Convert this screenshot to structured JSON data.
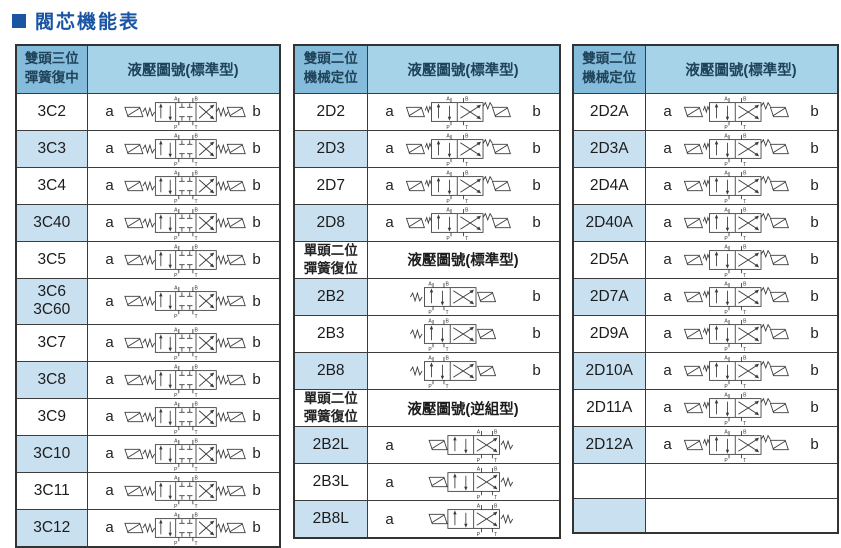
{
  "page": {
    "title": "閥芯機能表"
  },
  "colors": {
    "title": "#1a55a3",
    "header_col1_bg": "#85bcdb",
    "header_col2_bg": "#a7d3e8",
    "row_alt_bg": "#c9e0f1",
    "row_bg": "#ffffff",
    "border": "#3c3c3c"
  },
  "tables": [
    {
      "name": "three-position-spring-centered",
      "header": {
        "col1": "雙頭三位\n彈簧復中",
        "col2": "液壓圖號(標準型)"
      },
      "rows": [
        {
          "label": "3C2",
          "a": "a",
          "b": "b",
          "diagram": "valve-3pos"
        },
        {
          "label": "3C3",
          "a": "a",
          "b": "b",
          "diagram": "valve-3pos"
        },
        {
          "label": "3C4",
          "a": "a",
          "b": "b",
          "diagram": "valve-3pos"
        },
        {
          "label": "3C40",
          "a": "a",
          "b": "b",
          "diagram": "valve-3pos"
        },
        {
          "label": "3C5",
          "a": "a",
          "b": "b",
          "diagram": "valve-3pos"
        },
        {
          "label": "3C6\n3C60",
          "tall": true,
          "a": "a",
          "b": "b",
          "diagram": "valve-3pos"
        },
        {
          "label": "3C7",
          "a": "a",
          "b": "b",
          "diagram": "valve-3pos"
        },
        {
          "label": "3C8",
          "a": "a",
          "b": "b",
          "diagram": "valve-3pos"
        },
        {
          "label": "3C9",
          "a": "a",
          "b": "b",
          "diagram": "valve-3pos"
        },
        {
          "label": "3C10",
          "a": "a",
          "b": "b",
          "diagram": "valve-3pos"
        },
        {
          "label": "3C11",
          "a": "a",
          "b": "b",
          "diagram": "valve-3pos"
        },
        {
          "label": "3C12",
          "a": "a",
          "b": "b",
          "diagram": "valve-3pos"
        }
      ]
    },
    {
      "name": "two-position-mechanical-detent",
      "header": {
        "col1": "雙頭二位\n機械定位",
        "col2": "液壓圖號(標準型)"
      },
      "rows": [
        {
          "label": "2D2",
          "a": "a",
          "b": "b",
          "diagram": "valve-2pos-detent"
        },
        {
          "label": "2D3",
          "a": "a",
          "b": "b",
          "diagram": "valve-2pos-detent"
        },
        {
          "label": "2D7",
          "a": "a",
          "b": "b",
          "diagram": "valve-2pos-detent"
        },
        {
          "label": "2D8",
          "a": "a",
          "b": "b",
          "diagram": "valve-2pos-detent"
        },
        {
          "kind": "subheader",
          "label": "單頭二位\n彈簧復位",
          "title": "液壓圖號(標準型)"
        },
        {
          "label": "2B2",
          "b": "b",
          "diagram": "valve-2pos-spring-return"
        },
        {
          "label": "2B3",
          "b": "b",
          "diagram": "valve-2pos-spring-return"
        },
        {
          "label": "2B8",
          "b": "b",
          "diagram": "valve-2pos-spring-return"
        },
        {
          "kind": "subheader",
          "label": "單頭二位\n彈簧復位",
          "title": "液壓圖號(逆組型)"
        },
        {
          "label": "2B2L",
          "a": "a",
          "diagram": "valve-2pos-spring-return-reverse"
        },
        {
          "label": "2B3L",
          "a": "a",
          "diagram": "valve-2pos-spring-return-reverse"
        },
        {
          "label": "2B8L",
          "a": "a",
          "diagram": "valve-2pos-spring-return-reverse"
        }
      ]
    },
    {
      "name": "two-position-mechanical-detent-a",
      "header": {
        "col1": "雙頭二位\n機械定位",
        "col2": "液壓圖號(標準型)"
      },
      "rows": [
        {
          "label": "2D2A",
          "a": "a",
          "b": "b",
          "diagram": "valve-2pos-detent"
        },
        {
          "label": "2D3A",
          "a": "a",
          "b": "b",
          "diagram": "valve-2pos-detent"
        },
        {
          "label": "2D4A",
          "a": "a",
          "b": "b",
          "diagram": "valve-2pos-detent"
        },
        {
          "label": "2D40A",
          "a": "a",
          "b": "b",
          "diagram": "valve-2pos-detent"
        },
        {
          "label": "2D5A",
          "a": "a",
          "b": "b",
          "diagram": "valve-2pos-detent"
        },
        {
          "label": "2D7A",
          "a": "a",
          "b": "b",
          "diagram": "valve-2pos-detent"
        },
        {
          "label": "2D9A",
          "a": "a",
          "b": "b",
          "diagram": "valve-2pos-detent"
        },
        {
          "label": "2D10A",
          "a": "a",
          "b": "b",
          "diagram": "valve-2pos-detent"
        },
        {
          "label": "2D11A",
          "a": "a",
          "b": "b",
          "diagram": "valve-2pos-detent"
        },
        {
          "label": "2D12A",
          "a": "a",
          "b": "b",
          "diagram": "valve-2pos-detent"
        },
        {
          "kind": "empty"
        },
        {
          "kind": "empty"
        }
      ]
    }
  ]
}
